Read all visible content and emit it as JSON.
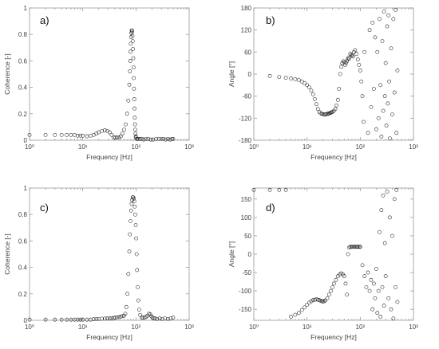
{
  "figure": {
    "panels": [
      "a)",
      "b)",
      "c)",
      "d)"
    ]
  },
  "chart_data": [
    {
      "panel": "a)",
      "type": "scatter",
      "xlabel": "Frequency [Hz]",
      "ylabel": "Coherence [-]",
      "xscale": "log",
      "xlim": [
        1,
        1000
      ],
      "ylim": [
        0,
        1
      ],
      "xticks": [
        1,
        10,
        100,
        1000
      ],
      "xtick_labels": [
        "10⁰",
        "10¹",
        "10²",
        "10³"
      ],
      "yticks": [
        0,
        0.2,
        0.4,
        0.6,
        0.8,
        1
      ],
      "ytick_labels": [
        "0",
        "0.2",
        "0.4",
        "0.6",
        "0.8",
        "1"
      ],
      "grid": false,
      "marker": "open-circle",
      "x": [
        1,
        2,
        3,
        4,
        5,
        6,
        7,
        8,
        9,
        10,
        12,
        14,
        16,
        18,
        20,
        23,
        26,
        29,
        32,
        35,
        38,
        41,
        44,
        48,
        52,
        56,
        60,
        64,
        68,
        72,
        75,
        77,
        78,
        79,
        80,
        81,
        82,
        83,
        84,
        85,
        86,
        87,
        88,
        89,
        90,
        91,
        92,
        93,
        94,
        95,
        96,
        97,
        98,
        99,
        100,
        103,
        107,
        112,
        120,
        130,
        140,
        155,
        170,
        190,
        210,
        240,
        270,
        300,
        330,
        360,
        400,
        440,
        480,
        500
      ],
      "y": [
        0.04,
        0.04,
        0.04,
        0.04,
        0.04,
        0.04,
        0.04,
        0.035,
        0.035,
        0.035,
        0.03,
        0.035,
        0.04,
        0.05,
        0.06,
        0.07,
        0.075,
        0.07,
        0.06,
        0.04,
        0.02,
        0.02,
        0.02,
        0.02,
        0.03,
        0.05,
        0.08,
        0.12,
        0.2,
        0.3,
        0.42,
        0.52,
        0.6,
        0.67,
        0.73,
        0.78,
        0.81,
        0.83,
        0.83,
        0.82,
        0.79,
        0.75,
        0.69,
        0.62,
        0.55,
        0.47,
        0.39,
        0.31,
        0.24,
        0.17,
        0.12,
        0.08,
        0.05,
        0.03,
        0.02,
        0.01,
        0.01,
        0.01,
        0.01,
        0.01,
        0.005,
        0.01,
        0.01,
        0.005,
        0.005,
        0.01,
        0.01,
        0.01,
        0.01,
        0.005,
        0.01,
        0.005,
        0.01,
        0.01
      ]
    },
    {
      "panel": "b)",
      "type": "scatter",
      "xlabel": "Frequency [Hz]",
      "ylabel": "Angle [°]",
      "xscale": "log",
      "xlim": [
        1,
        1000
      ],
      "ylim": [
        -180,
        180
      ],
      "xticks": [
        1,
        10,
        100,
        1000
      ],
      "xtick_labels": [
        "10⁰",
        "10¹",
        "10²",
        "10³"
      ],
      "yticks": [
        -180,
        -120,
        -60,
        0,
        60,
        120,
        180
      ],
      "ytick_labels": [
        "-180",
        "-120",
        "-60",
        "0",
        "60",
        "120",
        "180"
      ],
      "grid": false,
      "marker": "open-circle",
      "x": [
        2,
        3,
        4,
        5,
        6,
        7,
        8,
        9,
        10,
        11,
        12,
        13,
        14,
        15,
        16,
        17,
        18,
        19,
        20,
        21,
        22,
        23,
        24,
        25,
        26,
        27,
        28,
        29,
        30,
        32,
        34,
        36,
        38,
        40,
        42,
        44,
        46,
        48,
        50,
        52,
        54,
        56,
        58,
        60,
        62,
        65,
        68,
        70,
        73,
        76,
        80,
        85,
        90,
        95,
        100,
        105,
        110,
        115,
        120,
        140,
        150,
        160,
        170,
        180,
        190,
        200,
        210,
        220,
        230,
        240,
        250,
        260,
        270,
        280,
        290,
        300,
        310,
        320,
        330,
        340,
        350,
        360,
        380,
        400,
        420,
        440,
        460,
        480,
        500
      ],
      "y": [
        -5,
        -8,
        -10,
        -12,
        -14,
        -16,
        -20,
        -25,
        -30,
        -36,
        -45,
        -55,
        -68,
        -82,
        -95,
        -103,
        -107,
        -108,
        -109,
        -110,
        -110,
        -109,
        -108,
        -108,
        -107,
        -106,
        -105,
        -104,
        -103,
        -100,
        -95,
        -85,
        -70,
        -40,
        0,
        20,
        30,
        35,
        32,
        25,
        30,
        35,
        40,
        45,
        42,
        55,
        52,
        50,
        48,
        60,
        65,
        55,
        40,
        25,
        10,
        -20,
        -60,
        -130,
        60,
        -160,
        120,
        -90,
        140,
        -40,
        100,
        -150,
        60,
        -120,
        150,
        -30,
        -170,
        90,
        -100,
        170,
        -60,
        30,
        -140,
        130,
        -80,
        160,
        -20,
        -175,
        70,
        -110,
        150,
        -50,
        175,
        -160,
        10
      ]
    },
    {
      "panel": "c)",
      "type": "scatter",
      "xlabel": "Frequency [Hz]",
      "ylabel": "Coherence [-]",
      "xscale": "log",
      "xlim": [
        1,
        1000
      ],
      "ylim": [
        0,
        1
      ],
      "xticks": [
        1,
        10,
        100,
        1000
      ],
      "xtick_labels": [
        "10⁰",
        "10¹",
        "10²",
        "10³"
      ],
      "yticks": [
        0,
        0.2,
        0.4,
        0.6,
        0.8,
        1
      ],
      "ytick_labels": [
        "0",
        "0.2",
        "0.4",
        "0.6",
        "0.8",
        "1"
      ],
      "grid": false,
      "marker": "open-circle",
      "x": [
        1,
        2,
        3,
        4,
        5,
        6,
        7,
        8,
        9,
        10,
        12,
        14,
        16,
        18,
        20,
        23,
        26,
        29,
        32,
        35,
        38,
        41,
        44,
        48,
        52,
        56,
        60,
        63,
        66,
        69,
        72,
        75,
        77,
        79,
        81,
        83,
        85,
        87,
        89,
        91,
        93,
        95,
        97,
        99,
        101,
        103,
        105,
        108,
        111,
        115,
        120,
        128,
        135,
        145,
        155,
        165,
        175,
        185,
        195,
        205,
        215,
        230,
        250,
        280,
        310,
        350,
        400,
        450,
        500
      ],
      "y": [
        0.005,
        0.005,
        0.005,
        0.005,
        0.005,
        0.005,
        0.005,
        0.005,
        0.005,
        0.005,
        0.005,
        0.005,
        0.008,
        0.01,
        0.01,
        0.012,
        0.013,
        0.014,
        0.015,
        0.016,
        0.018,
        0.02,
        0.022,
        0.025,
        0.028,
        0.032,
        0.035,
        0.05,
        0.1,
        0.2,
        0.35,
        0.52,
        0.65,
        0.75,
        0.83,
        0.88,
        0.91,
        0.93,
        0.93,
        0.92,
        0.9,
        0.86,
        0.8,
        0.72,
        0.62,
        0.5,
        0.38,
        0.25,
        0.15,
        0.08,
        0.04,
        0.02,
        0.02,
        0.02,
        0.025,
        0.035,
        0.05,
        0.045,
        0.03,
        0.02,
        0.015,
        0.015,
        0.01,
        0.015,
        0.01,
        0.015,
        0.01,
        0.015,
        0.02
      ]
    },
    {
      "panel": "d)",
      "type": "scatter",
      "xlabel": "Frequency [Hz]",
      "ylabel": "Angle [°]",
      "xscale": "log",
      "xlim": [
        1,
        1000
      ],
      "ylim": [
        -180,
        180
      ],
      "xticks": [
        1,
        10,
        100,
        1000
      ],
      "xtick_labels": [
        "10⁰",
        "10¹",
        "10²",
        "10³"
      ],
      "yticks": [
        -150,
        -100,
        -50,
        0,
        50,
        100,
        150
      ],
      "ytick_labels": [
        "-150",
        "-100",
        "-50",
        "0",
        "50",
        "100",
        "150"
      ],
      "grid": false,
      "marker": "open-circle",
      "x": [
        1,
        2,
        3,
        4,
        5,
        6,
        7,
        8,
        9,
        10,
        11,
        12,
        13,
        14,
        15,
        16,
        17,
        18,
        19,
        20,
        21,
        22,
        24,
        26,
        28,
        30,
        32,
        35,
        38,
        41,
        44,
        47,
        50,
        53,
        56,
        59,
        62,
        65,
        68,
        72,
        76,
        80,
        84,
        88,
        92,
        96,
        100,
        110,
        120,
        130,
        140,
        150,
        160,
        170,
        180,
        190,
        200,
        210,
        220,
        230,
        240,
        250,
        260,
        270,
        280,
        290,
        300,
        320,
        340,
        360,
        380,
        400,
        420,
        440,
        460,
        480,
        500
      ],
      "y": [
        175,
        175,
        175,
        175,
        -170,
        -165,
        -160,
        -152,
        -145,
        -138,
        -132,
        -128,
        -125,
        -124,
        -123,
        -124,
        -125,
        -127,
        -128,
        -129,
        -128,
        -126,
        -120,
        -110,
        -100,
        -90,
        -80,
        -70,
        -60,
        -55,
        -52,
        -55,
        -60,
        -80,
        -110,
        0,
        18,
        20,
        20,
        20,
        20,
        20,
        20,
        20,
        20,
        20,
        20,
        -30,
        -60,
        -90,
        -50,
        -100,
        -70,
        -150,
        -80,
        -120,
        -40,
        -160,
        -100,
        60,
        -170,
        120,
        -90,
        160,
        -140,
        30,
        -60,
        170,
        -120,
        100,
        -150,
        50,
        -175,
        150,
        -90,
        175,
        -130
      ]
    }
  ]
}
